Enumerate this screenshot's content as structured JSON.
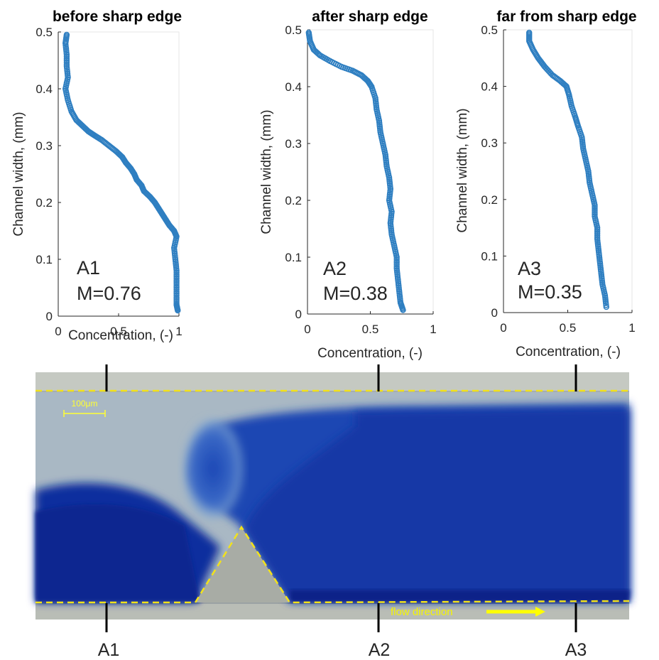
{
  "chart_data": [
    {
      "type": "scatter",
      "title": "before sharp edge",
      "xlabel": "Concentration, (-)",
      "ylabel": "Channel width, (mm)",
      "xlim": [
        0,
        1
      ],
      "ylim": [
        0,
        0.5
      ],
      "xticks": [
        "0",
        "0.5",
        "1"
      ],
      "yticks": [
        "0",
        "0.1",
        "0.2",
        "0.3",
        "0.4",
        "0.5"
      ],
      "label": "A1",
      "mixing": "M=0.76",
      "color": "#2f7fc1",
      "points": [
        [
          0.07,
          0.495
        ],
        [
          0.06,
          0.48
        ],
        [
          0.07,
          0.46
        ],
        [
          0.07,
          0.44
        ],
        [
          0.08,
          0.42
        ],
        [
          0.06,
          0.4
        ],
        [
          0.08,
          0.38
        ],
        [
          0.11,
          0.36
        ],
        [
          0.15,
          0.345
        ],
        [
          0.2,
          0.335
        ],
        [
          0.25,
          0.325
        ],
        [
          0.3,
          0.318
        ],
        [
          0.36,
          0.31
        ],
        [
          0.42,
          0.3
        ],
        [
          0.48,
          0.29
        ],
        [
          0.53,
          0.28
        ],
        [
          0.56,
          0.27
        ],
        [
          0.6,
          0.26
        ],
        [
          0.63,
          0.25
        ],
        [
          0.65,
          0.24
        ],
        [
          0.69,
          0.23
        ],
        [
          0.71,
          0.22
        ],
        [
          0.76,
          0.21
        ],
        [
          0.8,
          0.2
        ],
        [
          0.83,
          0.19
        ],
        [
          0.86,
          0.18
        ],
        [
          0.89,
          0.17
        ],
        [
          0.92,
          0.16
        ],
        [
          0.96,
          0.15
        ],
        [
          0.98,
          0.14
        ],
        [
          0.96,
          0.12
        ],
        [
          0.97,
          0.1
        ],
        [
          0.98,
          0.08
        ],
        [
          0.98,
          0.06
        ],
        [
          0.98,
          0.04
        ],
        [
          0.98,
          0.02
        ],
        [
          0.99,
          0.01
        ]
      ]
    },
    {
      "type": "scatter",
      "title": "after sharp edge",
      "xlabel": "Concentration, (-)",
      "ylabel": "Channel width, (mm)",
      "xlim": [
        0,
        1
      ],
      "ylim": [
        0,
        0.5
      ],
      "xticks": [
        "0",
        "0.5",
        "1"
      ],
      "yticks": [
        "0",
        "0.1",
        "0.2",
        "0.3",
        "0.4",
        "0.5"
      ],
      "label": "A2",
      "mixing": "M=0.38",
      "color": "#2f7fc1",
      "points": [
        [
          0.01,
          0.495
        ],
        [
          0.02,
          0.48
        ],
        [
          0.05,
          0.465
        ],
        [
          0.1,
          0.455
        ],
        [
          0.18,
          0.445
        ],
        [
          0.27,
          0.435
        ],
        [
          0.36,
          0.428
        ],
        [
          0.43,
          0.42
        ],
        [
          0.48,
          0.41
        ],
        [
          0.51,
          0.4
        ],
        [
          0.54,
          0.38
        ],
        [
          0.55,
          0.36
        ],
        [
          0.57,
          0.34
        ],
        [
          0.58,
          0.32
        ],
        [
          0.6,
          0.3
        ],
        [
          0.62,
          0.28
        ],
        [
          0.63,
          0.26
        ],
        [
          0.65,
          0.24
        ],
        [
          0.66,
          0.22
        ],
        [
          0.65,
          0.2
        ],
        [
          0.67,
          0.18
        ],
        [
          0.66,
          0.16
        ],
        [
          0.67,
          0.14
        ],
        [
          0.69,
          0.12
        ],
        [
          0.71,
          0.1
        ],
        [
          0.71,
          0.08
        ],
        [
          0.72,
          0.06
        ],
        [
          0.73,
          0.04
        ],
        [
          0.74,
          0.02
        ],
        [
          0.76,
          0.007
        ]
      ]
    },
    {
      "type": "scatter",
      "title": "far from sharp edge",
      "xlabel": "Concentration, (-)",
      "ylabel": "Channel width, (mm)",
      "xlim": [
        0,
        1
      ],
      "ylim": [
        0,
        0.5
      ],
      "xticks": [
        "0",
        "0.5",
        "1"
      ],
      "yticks": [
        "0",
        "0.1",
        "0.2",
        "0.3",
        "0.4",
        "0.5"
      ],
      "label": "A3",
      "mixing": "M=0.35",
      "color": "#2f7fc1",
      "points": [
        [
          0.2,
          0.495
        ],
        [
          0.2,
          0.48
        ],
        [
          0.23,
          0.465
        ],
        [
          0.27,
          0.45
        ],
        [
          0.32,
          0.435
        ],
        [
          0.38,
          0.42
        ],
        [
          0.44,
          0.41
        ],
        [
          0.49,
          0.4
        ],
        [
          0.51,
          0.385
        ],
        [
          0.53,
          0.365
        ],
        [
          0.56,
          0.345
        ],
        [
          0.58,
          0.33
        ],
        [
          0.61,
          0.31
        ],
        [
          0.62,
          0.29
        ],
        [
          0.64,
          0.27
        ],
        [
          0.66,
          0.25
        ],
        [
          0.67,
          0.23
        ],
        [
          0.69,
          0.21
        ],
        [
          0.71,
          0.19
        ],
        [
          0.71,
          0.17
        ],
        [
          0.73,
          0.15
        ],
        [
          0.73,
          0.13
        ],
        [
          0.74,
          0.11
        ],
        [
          0.75,
          0.09
        ],
        [
          0.76,
          0.07
        ],
        [
          0.77,
          0.05
        ],
        [
          0.79,
          0.03
        ],
        [
          0.8,
          0.01
        ]
      ]
    }
  ],
  "photo": {
    "scale_bar_label": "100μm",
    "flow_label": "flow direction",
    "locations": [
      "A1",
      "A2",
      "A3"
    ],
    "dashed_line_color": "#f2e21a",
    "fluid_color": "#0e2fa6",
    "background_color": "#9aa0a2"
  }
}
